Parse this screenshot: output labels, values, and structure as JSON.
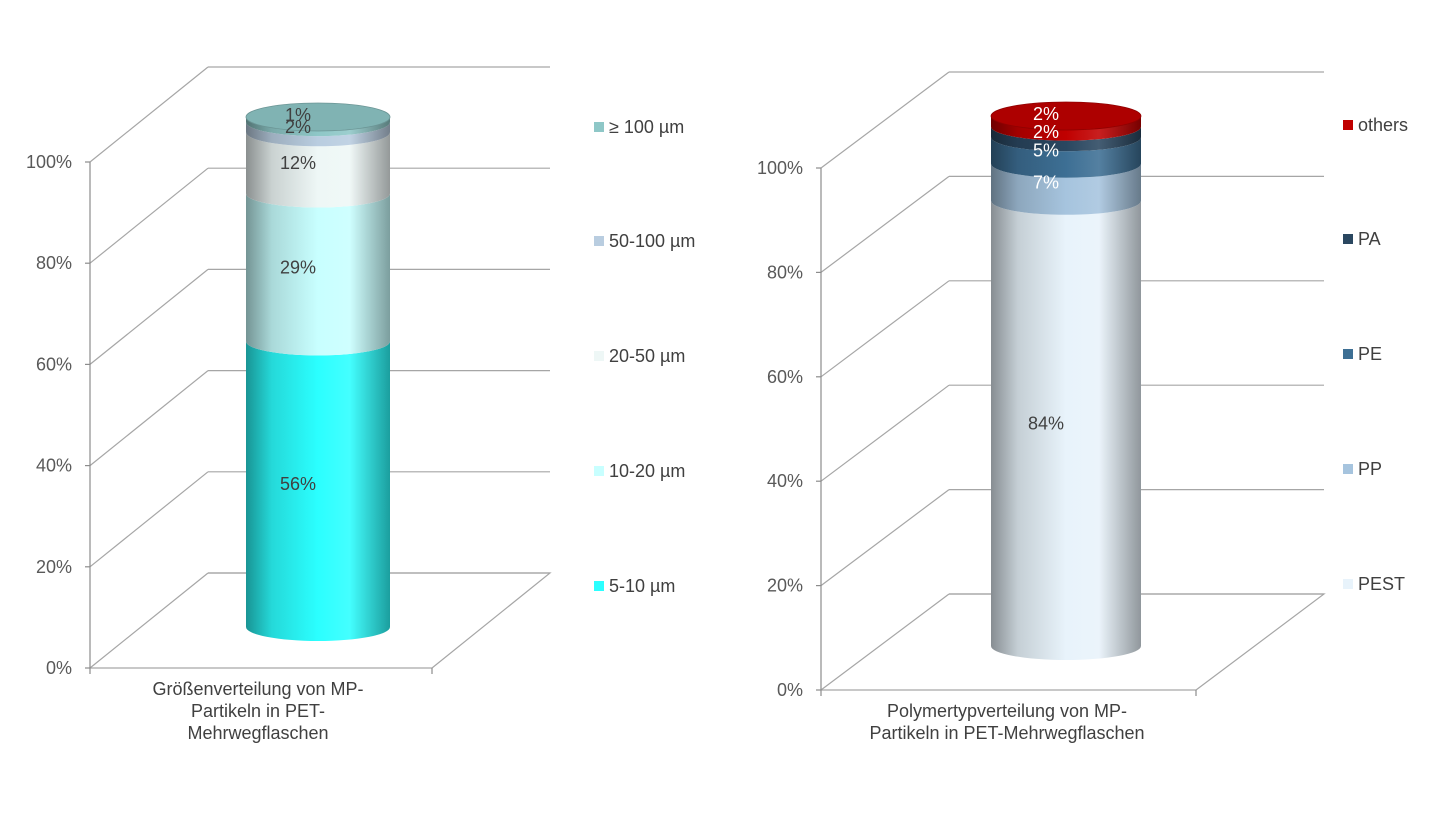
{
  "chart_data": [
    {
      "type": "bar",
      "stacked": true,
      "three_d": true,
      "categories": [
        "Größenverteilung von MP-Partikeln in PET-Mehrwegflaschen"
      ],
      "category_lines": [
        "Größenverteilung von MP-",
        "Partikeln in PET-",
        "Mehrwegflaschen"
      ],
      "ylim": [
        0,
        100
      ],
      "y_ticks": [
        "0%",
        "20%",
        "40%",
        "60%",
        "80%",
        "100%"
      ],
      "grid": true,
      "legend_position": "right",
      "series": [
        {
          "name": "5-10 µm",
          "value": 56,
          "label": "56%",
          "color": "#2bffff"
        },
        {
          "name": "10-20 µm",
          "value": 29,
          "label": "29%",
          "color": "#c8ffff"
        },
        {
          "name": "20-50 µm",
          "value": 12,
          "label": "12%",
          "color": "#eef7f6"
        },
        {
          "name": "50-100 µm",
          "value": 2,
          "label": "2%",
          "color": "#b9cde0"
        },
        {
          "name": "≥ 100 µm",
          "value": 1,
          "label": "1%",
          "color": "#8ec7c7"
        }
      ]
    },
    {
      "type": "bar",
      "stacked": true,
      "three_d": true,
      "categories": [
        "Polymertypverteilung von MP-Partikeln in PET-Mehrwegflaschen"
      ],
      "category_lines": [
        "Polymertypverteilung von MP-",
        "Partikeln in PET-Mehrwegflaschen"
      ],
      "ylim": [
        0,
        100
      ],
      "y_ticks": [
        "0%",
        "20%",
        "40%",
        "60%",
        "80%",
        "100%"
      ],
      "grid": true,
      "legend_position": "right",
      "series": [
        {
          "name": "PEST",
          "value": 84,
          "label": "84%",
          "color": "#e8f3fb"
        },
        {
          "name": "PP",
          "value": 7,
          "label": "7%",
          "color": "#a6c4de"
        },
        {
          "name": "PE",
          "value": 5,
          "label": "5%",
          "color": "#3d6f94"
        },
        {
          "name": "PA",
          "value": 2,
          "label": "2%",
          "color": "#2a4760"
        },
        {
          "name": "others",
          "value": 2,
          "label": "2%",
          "color": "#c00000"
        }
      ]
    }
  ]
}
